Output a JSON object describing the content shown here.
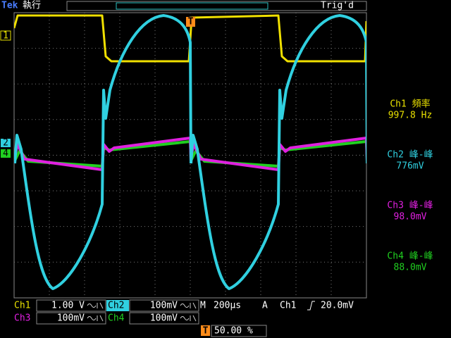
{
  "header": {
    "brand": "Tek",
    "status": "執行",
    "trigger_status": "Trig'd"
  },
  "markers": {
    "ch1": "1",
    "ch2": "2",
    "ch4": "4",
    "trigger": "T"
  },
  "measurements": [
    {
      "label": "Ch1 頻率",
      "value": "997.8 Hz"
    },
    {
      "label": "Ch2 峰-峰",
      "value": "776mV"
    },
    {
      "label": "Ch3 峰-峰",
      "value": "98.0mV"
    },
    {
      "label": "Ch4 峰-峰",
      "value": "88.0mV"
    }
  ],
  "settings": {
    "ch1": {
      "name": "Ch1",
      "scale": "1.00 V"
    },
    "ch2": {
      "name": "Ch2",
      "scale": "100mV"
    },
    "ch3": {
      "name": "Ch3",
      "scale": "100mV"
    },
    "ch4": {
      "name": "Ch4",
      "scale": "100mV"
    },
    "timebase": {
      "prefix": "M",
      "scale": "200µs"
    },
    "trigger": {
      "mode": "A",
      "source": "Ch1",
      "level": "20.0mV"
    },
    "trigger_position": {
      "marker": "T",
      "value": "50.00 %"
    }
  }
}
